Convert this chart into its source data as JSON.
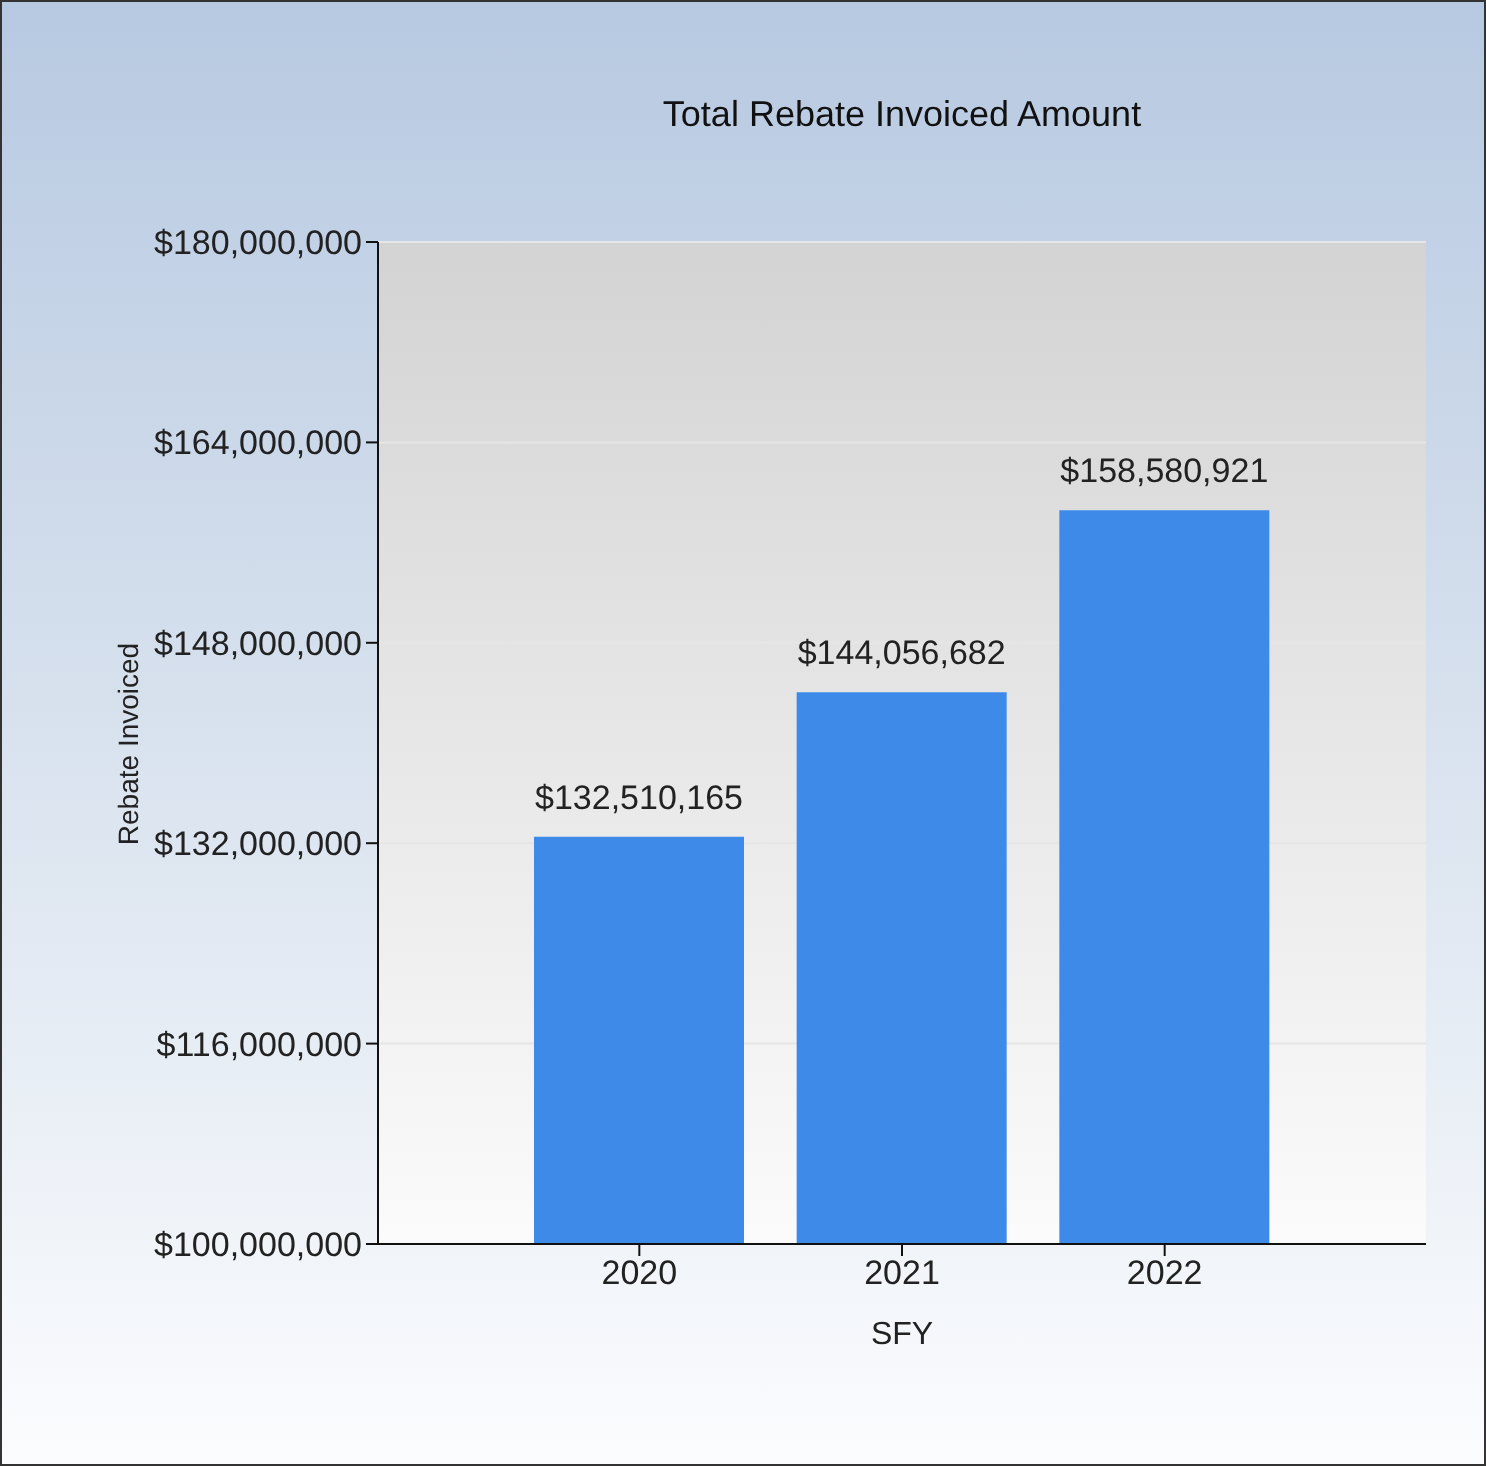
{
  "chart_data": {
    "type": "bar",
    "title": "Total Rebate Invoiced Amount",
    "xlabel": "SFY",
    "ylabel": "Rebate Invoiced",
    "categories": [
      "2020",
      "2021",
      "2022"
    ],
    "values": [
      132510165,
      144056682,
      158580921
    ],
    "value_labels": [
      "$132,510,165",
      "$144,056,682",
      "$158,580,921"
    ],
    "color": "#3d8ae9",
    "ylim": [
      100000000,
      180000000
    ],
    "yticks": [
      {
        "value": 100000000,
        "label": "$100,000,000"
      },
      {
        "value": 116000000,
        "label": "$116,000,000"
      },
      {
        "value": 132000000,
        "label": "$132,000,000"
      },
      {
        "value": 148000000,
        "label": "$148,000,000"
      },
      {
        "value": 164000000,
        "label": "$164,000,000"
      },
      {
        "value": 180000000,
        "label": "$180,000,000"
      }
    ],
    "grid": "y",
    "legend": false
  }
}
